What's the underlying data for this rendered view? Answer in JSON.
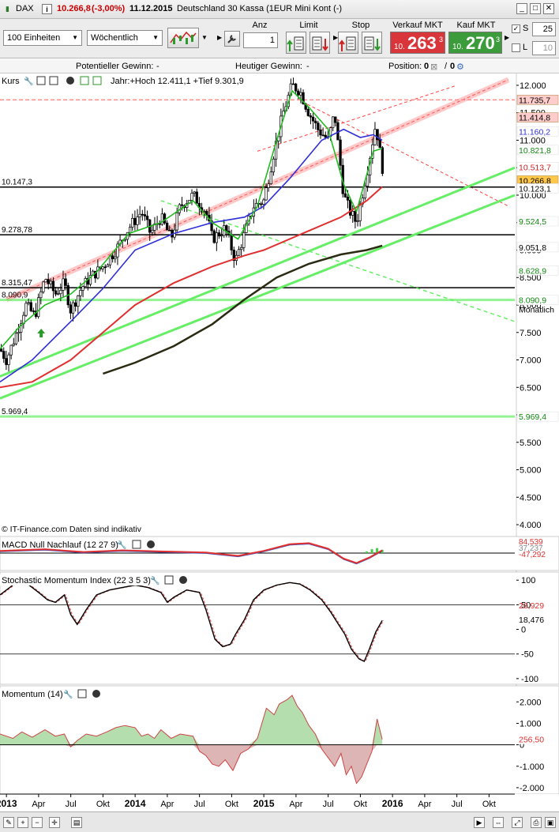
{
  "window": {
    "symbol": "DAX",
    "last_price": "10.266,8",
    "change_pct": "(-3,00%)",
    "date": "11.12.2015",
    "instrument": "Deutschland 30 Kassa (1EUR Mini Kont (-)"
  },
  "toolbar": {
    "units_select": "100 Einheiten",
    "period_select": "Wöchentlich",
    "anz_label": "Anz",
    "anz_value": "1",
    "limit_label": "Limit",
    "stop_label": "Stop",
    "sell_label": "Verkauf MKT",
    "sell_prefix": "10.",
    "sell_big": "263",
    "sell_sup": "3",
    "buy_label": "Kauf MKT",
    "buy_prefix": "10.",
    "buy_big": "270",
    "buy_sup": "3",
    "s_label": "S",
    "s_value": "25",
    "l_label": "L",
    "l_value": "10"
  },
  "info": {
    "potential_label": "Potentieller Gewinn:",
    "potential_value": "-",
    "today_label": "Heutiger Gewinn:",
    "today_value": "-",
    "position_label": "Position:",
    "position_value": "0",
    "position_sep": "/",
    "position_value2": "0"
  },
  "colors": {
    "sell": "#d9363c",
    "buy": "#3c9c3c",
    "candle": "#000000",
    "ma_blue": "#2f2fd8",
    "ma_red": "#e03030",
    "ma_green": "#22bb22",
    "ma_dark": "#2b2b14",
    "trend_green": "#66ee66",
    "trend_red": "#ff8a8a"
  },
  "chart_data": [
    {
      "type": "candlestick",
      "panel": "Kurs",
      "info_text": "Jahr:+Hoch 12.411,1 +Tief 9.301,9",
      "ylim": [
        3900,
        12100
      ],
      "y_ticks": [
        "12.000",
        "11.500",
        "11.000",
        "10.500",
        "10.000",
        "9.500",
        "9.000",
        "8.500",
        "8.000",
        "7.500",
        "7.000",
        "6.500",
        "6.000",
        "5.500",
        "5.000",
        "4.500",
        "4.000"
      ],
      "y_tick_values": [
        12000,
        11500,
        11000,
        10500,
        10000,
        9500,
        9000,
        8500,
        8000,
        7500,
        7000,
        6500,
        6000,
        5500,
        5000,
        4500,
        4000
      ],
      "x_ticks": [
        "2013",
        "Apr",
        "Jul",
        "Okt",
        "2014",
        "Apr",
        "Jul",
        "Okt",
        "2015",
        "Apr",
        "Jul",
        "Okt",
        "2016",
        "Apr",
        "Jul",
        "Okt"
      ],
      "x_tick_years": [
        2013.0,
        2013.25,
        2013.5,
        2013.75,
        2014.0,
        2014.25,
        2014.5,
        2014.75,
        2015.0,
        2015.25,
        2015.5,
        2015.75,
        2016.0,
        2016.25,
        2016.5,
        2016.75
      ],
      "x_range": [
        2012.95,
        2016.95
      ],
      "footer": "© IT-Finance.com  Daten sind indikativ",
      "close_path": [
        [
          2012.95,
          7200
        ],
        [
          2013.0,
          7000
        ],
        [
          2013.08,
          7500
        ],
        [
          2013.15,
          8000
        ],
        [
          2013.22,
          7800
        ],
        [
          2013.3,
          8500
        ],
        [
          2013.38,
          8200
        ],
        [
          2013.45,
          8400
        ],
        [
          2013.5,
          7900
        ],
        [
          2013.58,
          8300
        ],
        [
          2013.65,
          8500
        ],
        [
          2013.75,
          8700
        ],
        [
          2013.85,
          9000
        ],
        [
          2013.95,
          9400
        ],
        [
          2014.05,
          9700
        ],
        [
          2014.12,
          9300
        ],
        [
          2014.2,
          9600
        ],
        [
          2014.28,
          9200
        ],
        [
          2014.35,
          9800
        ],
        [
          2014.45,
          10000
        ],
        [
          2014.55,
          9700
        ],
        [
          2014.6,
          9200
        ],
        [
          2014.7,
          9400
        ],
        [
          2014.78,
          8800
        ],
        [
          2014.85,
          9300
        ],
        [
          2014.92,
          9800
        ],
        [
          2015.0,
          9900
        ],
        [
          2015.08,
          10800
        ],
        [
          2015.15,
          11500
        ],
        [
          2015.22,
          12000
        ],
        [
          2015.28,
          11900
        ],
        [
          2015.35,
          11500
        ],
        [
          2015.42,
          11200
        ],
        [
          2015.5,
          11000
        ],
        [
          2015.55,
          11500
        ],
        [
          2015.62,
          10000
        ],
        [
          2015.67,
          9700
        ],
        [
          2015.72,
          9500
        ],
        [
          2015.8,
          10400
        ],
        [
          2015.87,
          11300
        ],
        [
          2015.92,
          10500
        ]
      ],
      "levels": [
        {
          "label": "10.147,3",
          "value": 10147.3,
          "color": "#000000"
        },
        {
          "label": "9.278,78",
          "value": 9278.78,
          "color": "#000000"
        },
        {
          "label": "8.315,47",
          "value": 8315.47,
          "color": "#000000"
        },
        {
          "label": "8.090,9",
          "value": 8090.9,
          "color": "#66ee66",
          "extra": "Monatlich"
        },
        {
          "label": "5.969,4",
          "value": 5969.4,
          "color": "#66ee66"
        },
        {
          "label": "11.735,7",
          "value": 11735.7,
          "color": "#ff8a8a"
        }
      ],
      "right_labels": [
        {
          "label": "11.735,7",
          "value": 11735.7,
          "bg": "#ffcccc",
          "fg": "#000000"
        },
        {
          "label": "11.414,8",
          "value": 11414.8,
          "bg": "#ffcccc",
          "fg": "#000000"
        },
        {
          "label": "11.160,2",
          "value": 11160.2,
          "bg": "#ffffff",
          "fg": "#2f2fd8"
        },
        {
          "label": "10.821,8",
          "value": 10821.8,
          "bg": "#ffffff",
          "fg": "#118811"
        },
        {
          "label": "10.513,7",
          "value": 10513.7,
          "bg": "#ffffff",
          "fg": "#cc2222"
        },
        {
          "label": "10.266,8",
          "value": 10266.8,
          "bg": "#ffc84a",
          "fg": "#000000"
        },
        {
          "label": "10.123,1",
          "value": 10123.1,
          "bg": "#ffffff",
          "fg": "#000000"
        },
        {
          "label": "9.524,5",
          "value": 9524.5,
          "bg": "#ffffff",
          "fg": "#118811"
        },
        {
          "label": "9.051,8",
          "value": 9051.8,
          "bg": "#ffffff",
          "fg": "#000000"
        },
        {
          "label": "8.628,9",
          "value": 8628.9,
          "bg": "#ffffff",
          "fg": "#118811"
        },
        {
          "label": "8.090,9",
          "value": 8090.9,
          "bg": "#ffffff",
          "fg": "#118811"
        },
        {
          "label": "5.969,4",
          "value": 5969.4,
          "bg": "#ffffff",
          "fg": "#118811"
        }
      ],
      "ma_blue": [
        [
          2012.95,
          6600
        ],
        [
          2013.2,
          7000
        ],
        [
          2013.5,
          7700
        ],
        [
          2013.75,
          8300
        ],
        [
          2014.0,
          9000
        ],
        [
          2014.3,
          9300
        ],
        [
          2014.6,
          9500
        ],
        [
          2014.85,
          9600
        ],
        [
          2015.0,
          9800
        ],
        [
          2015.2,
          10300
        ],
        [
          2015.45,
          11000
        ],
        [
          2015.62,
          11200
        ],
        [
          2015.75,
          11050
        ],
        [
          2015.85,
          11100
        ],
        [
          2015.92,
          11000
        ]
      ],
      "ma_red": [
        [
          2012.95,
          6500
        ],
        [
          2013.2,
          6600
        ],
        [
          2013.5,
          7000
        ],
        [
          2013.75,
          7500
        ],
        [
          2014.0,
          8000
        ],
        [
          2014.3,
          8400
        ],
        [
          2014.6,
          8700
        ],
        [
          2014.85,
          8900
        ],
        [
          2015.0,
          9000
        ],
        [
          2015.3,
          9300
        ],
        [
          2015.6,
          9600
        ],
        [
          2015.8,
          9900
        ],
        [
          2015.92,
          10150
        ]
      ],
      "ma_dark": [
        [
          2013.75,
          6750
        ],
        [
          2014.0,
          6950
        ],
        [
          2014.3,
          7250
        ],
        [
          2014.6,
          7650
        ],
        [
          2014.85,
          8100
        ],
        [
          2015.1,
          8500
        ],
        [
          2015.35,
          8750
        ],
        [
          2015.6,
          8920
        ],
        [
          2015.8,
          9000
        ],
        [
          2015.92,
          9080
        ]
      ],
      "ma_green_fast": [
        [
          2012.95,
          7200
        ],
        [
          2013.1,
          7600
        ],
        [
          2013.3,
          8000
        ],
        [
          2013.5,
          8200
        ],
        [
          2013.7,
          8600
        ],
        [
          2013.95,
          9300
        ],
        [
          2014.2,
          9500
        ],
        [
          2014.45,
          9900
        ],
        [
          2014.6,
          9500
        ],
        [
          2014.8,
          9200
        ],
        [
          2014.95,
          9800
        ],
        [
          2015.1,
          11000
        ],
        [
          2015.22,
          11900
        ],
        [
          2015.35,
          11600
        ],
        [
          2015.5,
          11200
        ],
        [
          2015.62,
          10200
        ],
        [
          2015.72,
          9700
        ],
        [
          2015.85,
          10800
        ],
        [
          2015.92,
          10850
        ]
      ],
      "trend_green_1": [
        [
          2012.95,
          6700
        ],
        [
          2016.95,
          10500
        ]
      ],
      "trend_green_2": [
        [
          2012.95,
          6300
        ],
        [
          2016.95,
          10000
        ]
      ],
      "trend_green_dashed": [
        [
          2014.2,
          9900
        ],
        [
          2016.95,
          7700
        ]
      ],
      "trend_red_channel": [
        [
          2013.0,
          8100
        ],
        [
          2016.9,
          12100
        ]
      ],
      "trend_red_dashed_1": [
        [
          2015.3,
          11700
        ],
        [
          2016.9,
          9800
        ]
      ],
      "trend_red_dashed_2": [
        [
          2014.95,
          10800
        ],
        [
          2016.5,
          12000
        ]
      ]
    },
    {
      "type": "line",
      "panel": "MACD Null Nachlauf (12 27 9)",
      "right_labels": [
        {
          "label": "84,539",
          "color": "#e03030"
        },
        {
          "label": "37,237",
          "color": "#888888"
        },
        {
          "label": "-47,292",
          "color": "#e03030"
        }
      ],
      "macd": [
        [
          2012.95,
          0.2
        ],
        [
          2013.3,
          0.35
        ],
        [
          2013.6,
          0.1
        ],
        [
          2013.9,
          0.25
        ],
        [
          2014.2,
          0.15
        ],
        [
          2014.55,
          0.05
        ],
        [
          2014.8,
          -0.25
        ],
        [
          2015.0,
          0.2
        ],
        [
          2015.2,
          0.8
        ],
        [
          2015.35,
          0.9
        ],
        [
          2015.5,
          0.4
        ],
        [
          2015.62,
          -0.5
        ],
        [
          2015.72,
          -0.9
        ],
        [
          2015.82,
          -0.4
        ],
        [
          2015.92,
          0.25
        ]
      ],
      "histogram": [
        [
          2015.8,
          0.15
        ],
        [
          2015.84,
          0.35
        ],
        [
          2015.88,
          0.45
        ],
        [
          2015.92,
          0.3
        ]
      ]
    },
    {
      "type": "line",
      "panel": "Stochastic Momentum Index (22 3 5 3)",
      "y_ticks": [
        "100",
        "50",
        "0",
        "-50",
        "-100"
      ],
      "y_tick_values": [
        100,
        50,
        0,
        -50,
        -100
      ],
      "ylim": [
        -105,
        110
      ],
      "levels": [
        50,
        -50
      ],
      "right_labels": [
        {
          "label": "20,929",
          "color": "#e03030"
        },
        {
          "label": "18,476",
          "color": "#000000"
        }
      ],
      "smi": [
        [
          2012.95,
          70
        ],
        [
          2013.05,
          90
        ],
        [
          2013.15,
          95
        ],
        [
          2013.25,
          75
        ],
        [
          2013.32,
          60
        ],
        [
          2013.38,
          55
        ],
        [
          2013.45,
          70
        ],
        [
          2013.5,
          30
        ],
        [
          2013.55,
          10
        ],
        [
          2013.62,
          40
        ],
        [
          2013.7,
          70
        ],
        [
          2013.8,
          80
        ],
        [
          2013.9,
          85
        ],
        [
          2014.0,
          90
        ],
        [
          2014.1,
          85
        ],
        [
          2014.2,
          75
        ],
        [
          2014.25,
          55
        ],
        [
          2014.3,
          65
        ],
        [
          2014.4,
          80
        ],
        [
          2014.5,
          75
        ],
        [
          2014.55,
          40
        ],
        [
          2014.62,
          -20
        ],
        [
          2014.68,
          -35
        ],
        [
          2014.74,
          -30
        ],
        [
          2014.78,
          -10
        ],
        [
          2014.85,
          20
        ],
        [
          2014.92,
          60
        ],
        [
          2015.0,
          80
        ],
        [
          2015.1,
          90
        ],
        [
          2015.2,
          95
        ],
        [
          2015.28,
          92
        ],
        [
          2015.36,
          80
        ],
        [
          2015.45,
          60
        ],
        [
          2015.52,
          35
        ],
        [
          2015.58,
          10
        ],
        [
          2015.63,
          -10
        ],
        [
          2015.68,
          -40
        ],
        [
          2015.74,
          -60
        ],
        [
          2015.78,
          -65
        ],
        [
          2015.82,
          -40
        ],
        [
          2015.87,
          -5
        ],
        [
          2015.92,
          18
        ]
      ]
    },
    {
      "type": "area",
      "panel": "Momentum (14)",
      "y_ticks": [
        "2.000",
        "1.000",
        "0",
        "-1.000",
        "-2.000"
      ],
      "y_tick_values": [
        2000,
        1000,
        0,
        -1000,
        -2000
      ],
      "ylim": [
        -2150,
        2600
      ],
      "right_labels": [
        {
          "label": "256,50",
          "color": "#e03030"
        }
      ],
      "momentum": [
        [
          2012.95,
          500
        ],
        [
          2013.05,
          300
        ],
        [
          2013.12,
          600
        ],
        [
          2013.2,
          350
        ],
        [
          2013.3,
          700
        ],
        [
          2013.38,
          400
        ],
        [
          2013.45,
          500
        ],
        [
          2013.5,
          -100
        ],
        [
          2013.55,
          200
        ],
        [
          2013.62,
          500
        ],
        [
          2013.7,
          400
        ],
        [
          2013.78,
          600
        ],
        [
          2013.85,
          800
        ],
        [
          2013.92,
          900
        ],
        [
          2014.0,
          800
        ],
        [
          2014.05,
          400
        ],
        [
          2014.1,
          500
        ],
        [
          2014.15,
          300
        ],
        [
          2014.2,
          700
        ],
        [
          2014.28,
          300
        ],
        [
          2014.35,
          500
        ],
        [
          2014.45,
          400
        ],
        [
          2014.5,
          -300
        ],
        [
          2014.55,
          -500
        ],
        [
          2014.6,
          -900
        ],
        [
          2014.65,
          -1000
        ],
        [
          2014.7,
          -700
        ],
        [
          2014.76,
          -1200
        ],
        [
          2014.82,
          -400
        ],
        [
          2014.88,
          -200
        ],
        [
          2014.95,
          300
        ],
        [
          2015.02,
          1700
        ],
        [
          2015.08,
          1400
        ],
        [
          2015.12,
          1900
        ],
        [
          2015.18,
          2100
        ],
        [
          2015.22,
          2300
        ],
        [
          2015.26,
          1800
        ],
        [
          2015.3,
          1500
        ],
        [
          2015.35,
          900
        ],
        [
          2015.4,
          500
        ],
        [
          2015.45,
          -200
        ],
        [
          2015.5,
          -600
        ],
        [
          2015.55,
          -1000
        ],
        [
          2015.6,
          -400
        ],
        [
          2015.64,
          -1400
        ],
        [
          2015.68,
          -1000
        ],
        [
          2015.72,
          -1800
        ],
        [
          2015.76,
          -1500
        ],
        [
          2015.8,
          -900
        ],
        [
          2015.84,
          -300
        ],
        [
          2015.88,
          1200
        ],
        [
          2015.92,
          256
        ]
      ]
    }
  ]
}
